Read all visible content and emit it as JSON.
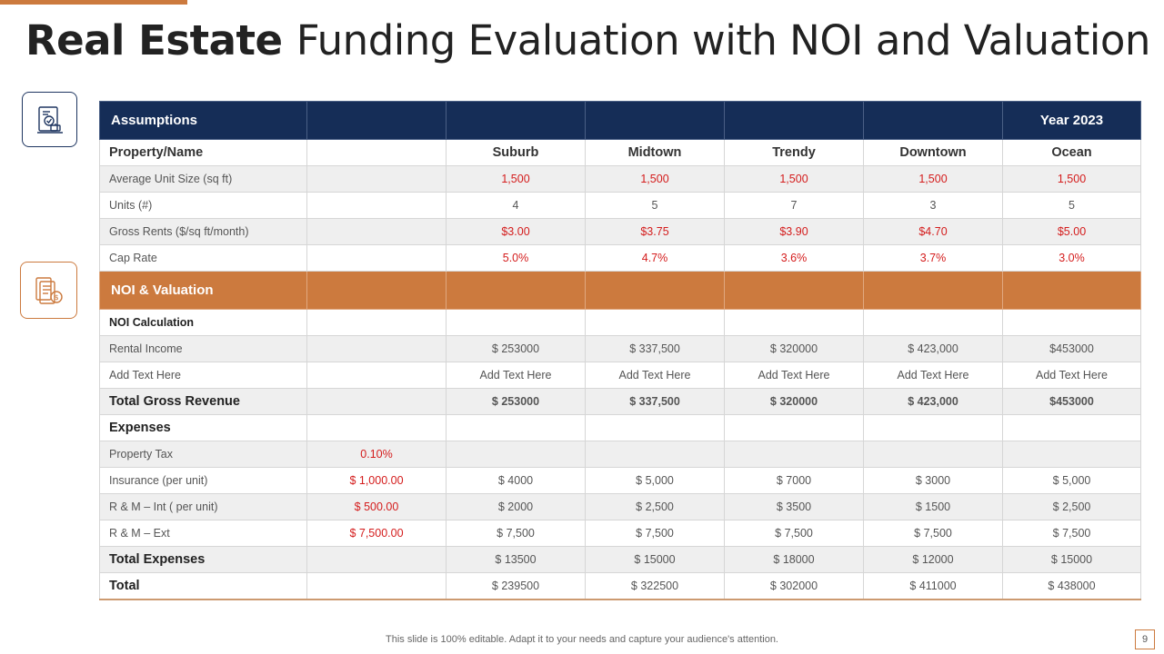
{
  "title": {
    "bold": "Real Estate",
    "rest": "Funding Evaluation with NOI and Valuation"
  },
  "icons": {
    "top": "document-chart-icon",
    "bottom": "finance-documents-icon"
  },
  "colors": {
    "navy": "#152d57",
    "orange": "#cc7a3e",
    "red": "#d41c1c"
  },
  "table": {
    "assumptions_header": {
      "label": "Assumptions",
      "year": "Year 2023"
    },
    "columns": [
      "Suburb",
      "Midtown",
      "Trendy",
      "Downtown",
      "Ocean"
    ],
    "property_label": "Property/Name",
    "assumption_rows": [
      {
        "label": "Average  Unit Size (sq ft)",
        "extra": "",
        "values": [
          "1,500",
          "1,500",
          "1,500",
          "1,500",
          "1,500"
        ]
      },
      {
        "label": "Units (#)",
        "extra": "",
        "values": [
          "4",
          "5",
          "7",
          "3",
          "5"
        ]
      },
      {
        "label": "Gross Rents ($/sq ft/month)",
        "extra": "",
        "values": [
          "$3.00",
          "$3.75",
          "$3.90",
          "$4.70",
          "$5.00"
        ]
      },
      {
        "label": "Cap Rate",
        "extra": "",
        "values": [
          "5.0%",
          "4.7%",
          "3.6%",
          "3.7%",
          "3.0%"
        ]
      }
    ],
    "noi_header": {
      "label": "NOI & Valuation"
    },
    "noi_calc_label": "NOI Calculation",
    "rental_income": {
      "label": "Rental Income",
      "values": [
        "$ 253000",
        "$ 337,500",
        "$ 320000",
        "$ 423,000",
        "$453000"
      ]
    },
    "add_text": {
      "label": "Add Text Here",
      "values": [
        "Add Text Here",
        "Add Text Here",
        "Add Text Here",
        "Add Text Here",
        "Add Text Here"
      ]
    },
    "total_gross": {
      "label": "Total Gross Revenue",
      "values": [
        "$ 253000",
        "$ 337,500",
        "$ 320000",
        "$ 423,000",
        "$453000"
      ]
    },
    "expenses_label": "Expenses",
    "property_tax": {
      "label": "Property Tax",
      "extra": "0.10%"
    },
    "insurance": {
      "label": "Insurance  (per unit)",
      "extra": "$ 1,000.00",
      "values": [
        "$ 4000",
        "$ 5,000",
        "$ 7000",
        "$ 3000",
        "$ 5,000"
      ]
    },
    "rm_int": {
      "label": "R & M – Int ( per unit)",
      "extra": "$ 500.00",
      "values": [
        "$ 2000",
        "$ 2,500",
        "$ 3500",
        "$ 1500",
        "$ 2,500"
      ]
    },
    "rm_ext": {
      "label": "R & M – Ext",
      "extra": "$ 7,500.00",
      "values": [
        "$ 7,500",
        "$ 7,500",
        "$ 7,500",
        "$ 7,500",
        "$ 7,500"
      ]
    },
    "total_expenses": {
      "label": "Total Expenses",
      "values": [
        "$ 13500",
        "$ 15000",
        "$ 18000",
        "$ 12000",
        "$ 15000"
      ]
    },
    "total": {
      "label": "Total",
      "values": [
        "$ 239500",
        "$ 322500",
        "$ 302000",
        "$ 411000",
        "$ 438000"
      ]
    }
  },
  "footer": {
    "text": "This slide is 100% editable. Adapt it to your needs and capture your audience's attention.",
    "page": "9"
  }
}
